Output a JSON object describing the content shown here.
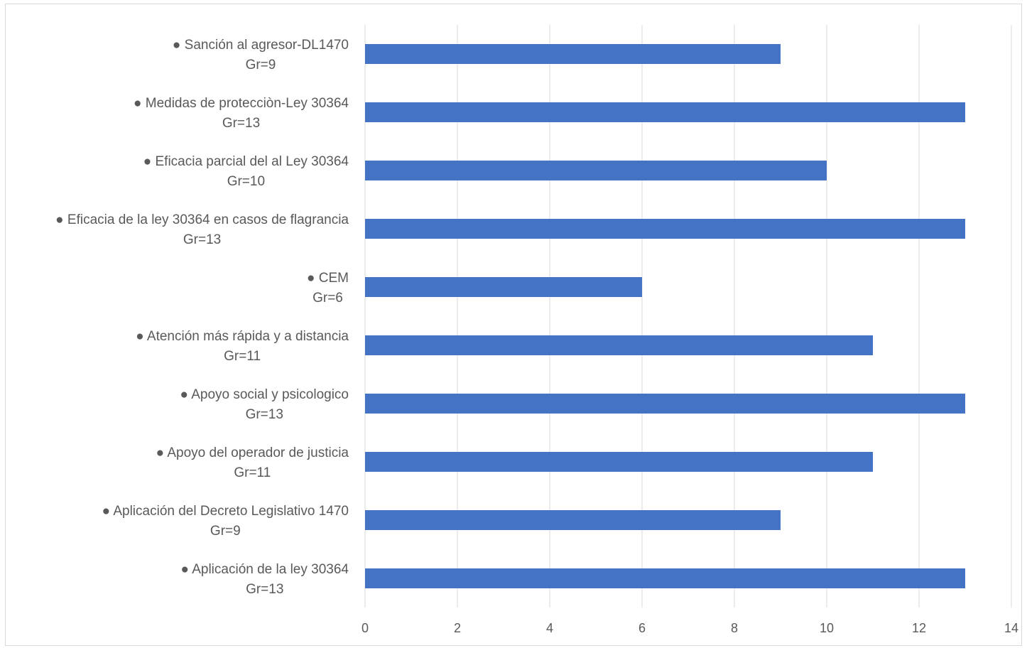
{
  "chart_data": {
    "type": "bar",
    "orientation": "horizontal",
    "title": "",
    "xlabel": "",
    "ylabel": "",
    "xlim": [
      0,
      14
    ],
    "xticks": [
      0,
      2,
      4,
      6,
      8,
      10,
      12,
      14
    ],
    "grid": "vertical",
    "legend": "none",
    "bar_color": "#4472c4",
    "categories": [
      {
        "line1": "● Sanción al agresor-DL1470",
        "line2": "Gr=9"
      },
      {
        "line1": "● Medidas de protecciòn-Ley 30364",
        "line2": "Gr=13"
      },
      {
        "line1": "● Eficacia parcial del al Ley 30364",
        "line2": "Gr=10"
      },
      {
        "line1": "● Eficacia de la ley 30364 en casos de flagrancia",
        "line2": "Gr=13"
      },
      {
        "line1": "● CEM",
        "line2": "Gr=6"
      },
      {
        "line1": "● Atención más rápida y a distancia",
        "line2": "Gr=11"
      },
      {
        "line1": "● Apoyo social y psicologico",
        "line2": "Gr=13"
      },
      {
        "line1": "● Apoyo del operador de justicia",
        "line2": "Gr=11"
      },
      {
        "line1": "● Aplicación del Decreto Legislativo 1470",
        "line2": "Gr=9"
      },
      {
        "line1": "● Aplicación de la ley 30364",
        "line2": "Gr=13"
      }
    ],
    "values": [
      9,
      13,
      10,
      13,
      6,
      11,
      13,
      11,
      9,
      13
    ]
  }
}
